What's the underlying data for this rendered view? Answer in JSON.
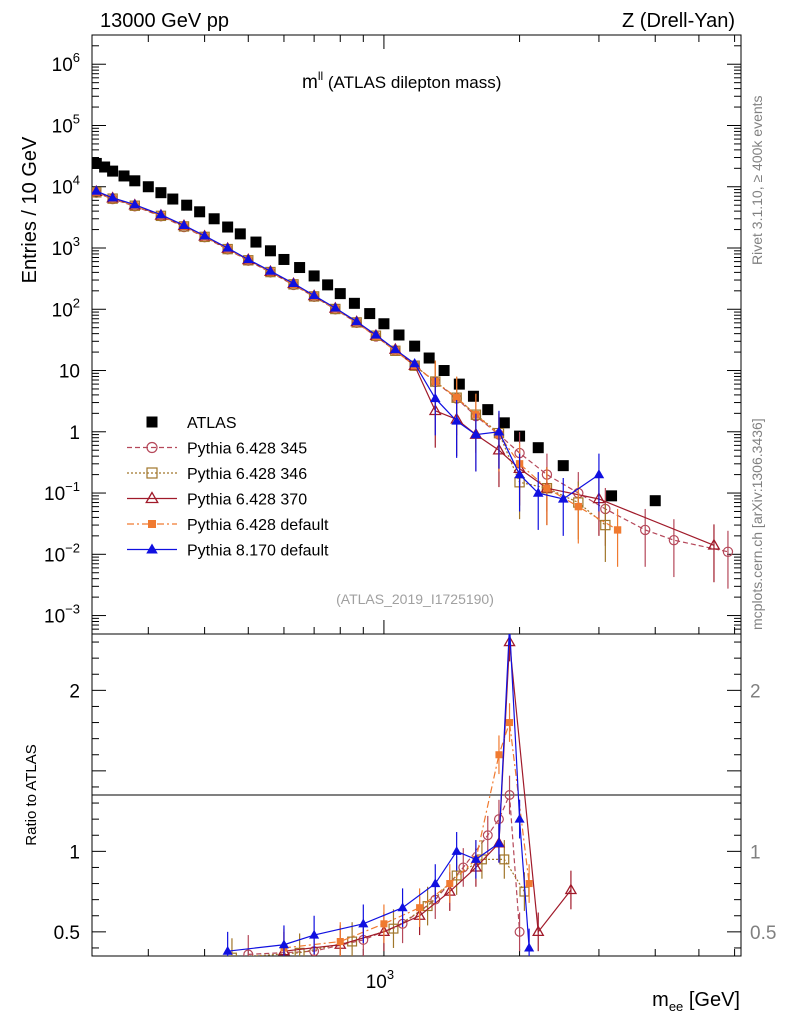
{
  "header": {
    "left": "13000 GeV pp",
    "right": "Z (Drell-Yan)"
  },
  "side": {
    "rivet": "Rivet 3.1.10, ≥ 400k events",
    "mcplots": "mcplots.cern.ch [arXiv:1306.3436]"
  },
  "chart_data": {
    "type": "scatter",
    "title_main": "m",
    "title_sup": "ll",
    "title_rest": " (ATLAS dilepton mass)",
    "analysis_tag": "(ATLAS_2019_I1725190)",
    "xlabel_main": "m",
    "xlabel_sub": "ee",
    "xlabel_unit": " [GeV]",
    "ylabel": "Entries / 10 GeV",
    "ratio_ylabel": "Ratio to ATLAS",
    "xscale": "log",
    "xlim": [
      225,
      6200
    ],
    "ylim": [
      0.0005,
      3000000
    ],
    "yscale": "log",
    "ratio_ylim": [
      0.35,
      2.35
    ],
    "x_tick_labels": [
      {
        "value": 1000,
        "base": "10",
        "exp": "3"
      }
    ],
    "y_tick_labels": [
      {
        "value": 1000000,
        "base": "10",
        "exp": "6"
      },
      {
        "value": 100000,
        "base": "10",
        "exp": "5"
      },
      {
        "value": 10000,
        "base": "10",
        "exp": "4"
      },
      {
        "value": 1000,
        "base": "10",
        "exp": "3"
      },
      {
        "value": 100,
        "base": "10",
        "exp": "2"
      },
      {
        "value": 10,
        "base": "10",
        "exp": ""
      },
      {
        "value": 1,
        "base": "1",
        "exp": ""
      },
      {
        "value": 0.1,
        "base": "10",
        "exp": "−1"
      },
      {
        "value": 0.01,
        "base": "10",
        "exp": "−2"
      },
      {
        "value": 0.001,
        "base": "10",
        "exp": "−3"
      }
    ],
    "ratio_tick_labels": [
      {
        "value": 2,
        "label": "2"
      },
      {
        "value": 1,
        "label": "1"
      },
      {
        "value": 0.5,
        "label": "0.5"
      }
    ],
    "legend_position": "bottom-left",
    "series": [
      {
        "name": "ATLAS",
        "color": "#000000",
        "marker": "square",
        "line": "none",
        "points": [
          [
            230,
            24000
          ],
          [
            240,
            21000
          ],
          [
            250,
            18000
          ],
          [
            265,
            15000
          ],
          [
            280,
            12500
          ],
          [
            300,
            10000
          ],
          [
            320,
            8000
          ],
          [
            340,
            6300
          ],
          [
            365,
            5000
          ],
          [
            390,
            3900
          ],
          [
            420,
            3000
          ],
          [
            450,
            2200
          ],
          [
            480,
            1700
          ],
          [
            520,
            1250
          ],
          [
            560,
            900
          ],
          [
            600,
            650
          ],
          [
            650,
            480
          ],
          [
            700,
            350
          ],
          [
            750,
            250
          ],
          [
            800,
            180
          ],
          [
            860,
            125
          ],
          [
            930,
            85
          ],
          [
            1000,
            58
          ],
          [
            1080,
            38
          ],
          [
            1170,
            25
          ],
          [
            1260,
            16
          ],
          [
            1360,
            10
          ],
          [
            1470,
            6
          ],
          [
            1580,
            3.8
          ],
          [
            1700,
            2.3
          ],
          [
            1850,
            1.4
          ],
          [
            2000,
            0.85
          ],
          [
            2200,
            0.55
          ],
          [
            2500,
            0.28
          ],
          [
            3200,
            0.09
          ],
          [
            4000,
            0.075
          ]
        ]
      },
      {
        "name": "Pythia 6.428 345",
        "color": "#b5485a",
        "marker": "circle-open",
        "line": "dashed",
        "points": [
          [
            230,
            8000
          ],
          [
            250,
            6300
          ],
          [
            280,
            4800
          ],
          [
            320,
            3300
          ],
          [
            360,
            2200
          ],
          [
            400,
            1500
          ],
          [
            450,
            950
          ],
          [
            500,
            620
          ],
          [
            560,
            400
          ],
          [
            630,
            250
          ],
          [
            700,
            160
          ],
          [
            780,
            100
          ],
          [
            870,
            60
          ],
          [
            960,
            36
          ],
          [
            1060,
            21
          ],
          [
            1170,
            12
          ],
          [
            1300,
            6.5
          ],
          [
            1450,
            3.5
          ],
          [
            1600,
            1.8
          ],
          [
            1800,
            0.9
          ],
          [
            2000,
            0.45
          ],
          [
            2300,
            0.2
          ],
          [
            2700,
            0.1
          ],
          [
            3100,
            0.055
          ],
          [
            3800,
            0.025
          ],
          [
            4400,
            0.017
          ],
          [
            5800,
            0.011
          ]
        ],
        "ratio": [
          [
            500,
            0.36
          ],
          [
            700,
            0.38
          ],
          [
            900,
            0.45
          ],
          [
            1100,
            0.55
          ],
          [
            1300,
            0.7
          ],
          [
            1500,
            0.9
          ],
          [
            1700,
            1.1
          ],
          [
            1800,
            1.2
          ],
          [
            1900,
            1.35
          ],
          [
            2000,
            0.5
          ]
        ]
      },
      {
        "name": "Pythia 6.428 346",
        "color": "#a0762a",
        "marker": "square-open",
        "line": "dotted",
        "points": [
          [
            230,
            8100
          ],
          [
            250,
            6400
          ],
          [
            280,
            4900
          ],
          [
            320,
            3350
          ],
          [
            360,
            2250
          ],
          [
            400,
            1520
          ],
          [
            450,
            960
          ],
          [
            500,
            630
          ],
          [
            560,
            405
          ],
          [
            630,
            255
          ],
          [
            700,
            162
          ],
          [
            780,
            101
          ],
          [
            870,
            61
          ],
          [
            960,
            37
          ],
          [
            1060,
            21
          ],
          [
            1170,
            12
          ],
          [
            1300,
            6.6
          ],
          [
            1450,
            3.6
          ],
          [
            1600,
            1.9
          ],
          [
            1800,
            0.95
          ],
          [
            2000,
            0.15
          ],
          [
            2300,
            0.12
          ],
          [
            2700,
            0.07
          ],
          [
            3100,
            0.03
          ]
        ],
        "ratio": [
          [
            460,
            0.34
          ],
          [
            650,
            0.37
          ],
          [
            850,
            0.44
          ],
          [
            1050,
            0.52
          ],
          [
            1250,
            0.66
          ],
          [
            1450,
            0.85
          ],
          [
            1650,
            0.95
          ],
          [
            1850,
            0.95
          ],
          [
            2050,
            0.75
          ]
        ]
      },
      {
        "name": "Pythia 6.428 370",
        "color": "#a01a2a",
        "marker": "triangle-open",
        "line": "solid",
        "points": [
          [
            230,
            8300
          ],
          [
            250,
            6500
          ],
          [
            280,
            5000
          ],
          [
            320,
            3400
          ],
          [
            360,
            2300
          ],
          [
            400,
            1550
          ],
          [
            450,
            980
          ],
          [
            500,
            640
          ],
          [
            560,
            410
          ],
          [
            630,
            260
          ],
          [
            700,
            165
          ],
          [
            780,
            103
          ],
          [
            870,
            62
          ],
          [
            960,
            37
          ],
          [
            1060,
            22
          ],
          [
            1170,
            12
          ],
          [
            1300,
            2.2
          ],
          [
            1450,
            1.6
          ],
          [
            1600,
            0.9
          ],
          [
            1800,
            0.5
          ],
          [
            2000,
            0.25
          ],
          [
            2300,
            0.12
          ],
          [
            3000,
            0.08
          ],
          [
            5400,
            0.014
          ]
        ],
        "ratio": [
          [
            600,
            0.38
          ],
          [
            800,
            0.42
          ],
          [
            1000,
            0.5
          ],
          [
            1200,
            0.6
          ],
          [
            1400,
            0.75
          ],
          [
            1600,
            0.9
          ],
          [
            1800,
            1.05
          ],
          [
            1900,
            2.3
          ],
          [
            2200,
            0.5
          ],
          [
            2600,
            0.76
          ]
        ]
      },
      {
        "name": "Pythia 6.428 default",
        "color": "#f07a30",
        "marker": "square-filled",
        "line": "dashdot",
        "points": [
          [
            230,
            8200
          ],
          [
            250,
            6400
          ],
          [
            280,
            4950
          ],
          [
            320,
            3380
          ],
          [
            360,
            2280
          ],
          [
            400,
            1530
          ],
          [
            450,
            970
          ],
          [
            500,
            635
          ],
          [
            560,
            408
          ],
          [
            630,
            257
          ],
          [
            700,
            163
          ],
          [
            780,
            102
          ],
          [
            870,
            61
          ],
          [
            960,
            36
          ],
          [
            1060,
            21
          ],
          [
            1170,
            12
          ],
          [
            1300,
            6.6
          ],
          [
            1450,
            3.6
          ],
          [
            1600,
            1.9
          ],
          [
            1800,
            0.9
          ],
          [
            2000,
            0.3
          ],
          [
            2300,
            0.12
          ],
          [
            2700,
            0.06
          ],
          [
            3300,
            0.025
          ]
        ],
        "ratio": [
          [
            600,
            0.4
          ],
          [
            800,
            0.44
          ],
          [
            1000,
            0.55
          ],
          [
            1200,
            0.65
          ],
          [
            1400,
            0.8
          ],
          [
            1600,
            0.95
          ],
          [
            1800,
            1.6
          ],
          [
            1900,
            1.8
          ],
          [
            2100,
            0.8
          ]
        ]
      },
      {
        "name": "Pythia 8.170 default",
        "color": "#1010e0",
        "marker": "triangle-filled",
        "line": "solid",
        "points": [
          [
            230,
            8500
          ],
          [
            250,
            6600
          ],
          [
            280,
            5100
          ],
          [
            320,
            3500
          ],
          [
            360,
            2350
          ],
          [
            400,
            1580
          ],
          [
            450,
            1000
          ],
          [
            500,
            650
          ],
          [
            560,
            420
          ],
          [
            630,
            265
          ],
          [
            700,
            168
          ],
          [
            780,
            105
          ],
          [
            870,
            63
          ],
          [
            960,
            38
          ],
          [
            1060,
            22
          ],
          [
            1170,
            13
          ],
          [
            1300,
            3.5
          ],
          [
            1450,
            1.5
          ],
          [
            1600,
            0.9
          ],
          [
            1800,
            1.0
          ],
          [
            2000,
            0.2
          ],
          [
            2200,
            0.1
          ],
          [
            2500,
            0.08
          ],
          [
            3000,
            0.2
          ]
        ],
        "ratio": [
          [
            450,
            0.38
          ],
          [
            600,
            0.42
          ],
          [
            700,
            0.48
          ],
          [
            900,
            0.55
          ],
          [
            1100,
            0.65
          ],
          [
            1300,
            0.8
          ],
          [
            1450,
            1.0
          ],
          [
            1600,
            0.95
          ],
          [
            1800,
            1.05
          ],
          [
            1900,
            2.4
          ],
          [
            2000,
            1.2
          ],
          [
            2100,
            0.4
          ]
        ]
      }
    ]
  }
}
